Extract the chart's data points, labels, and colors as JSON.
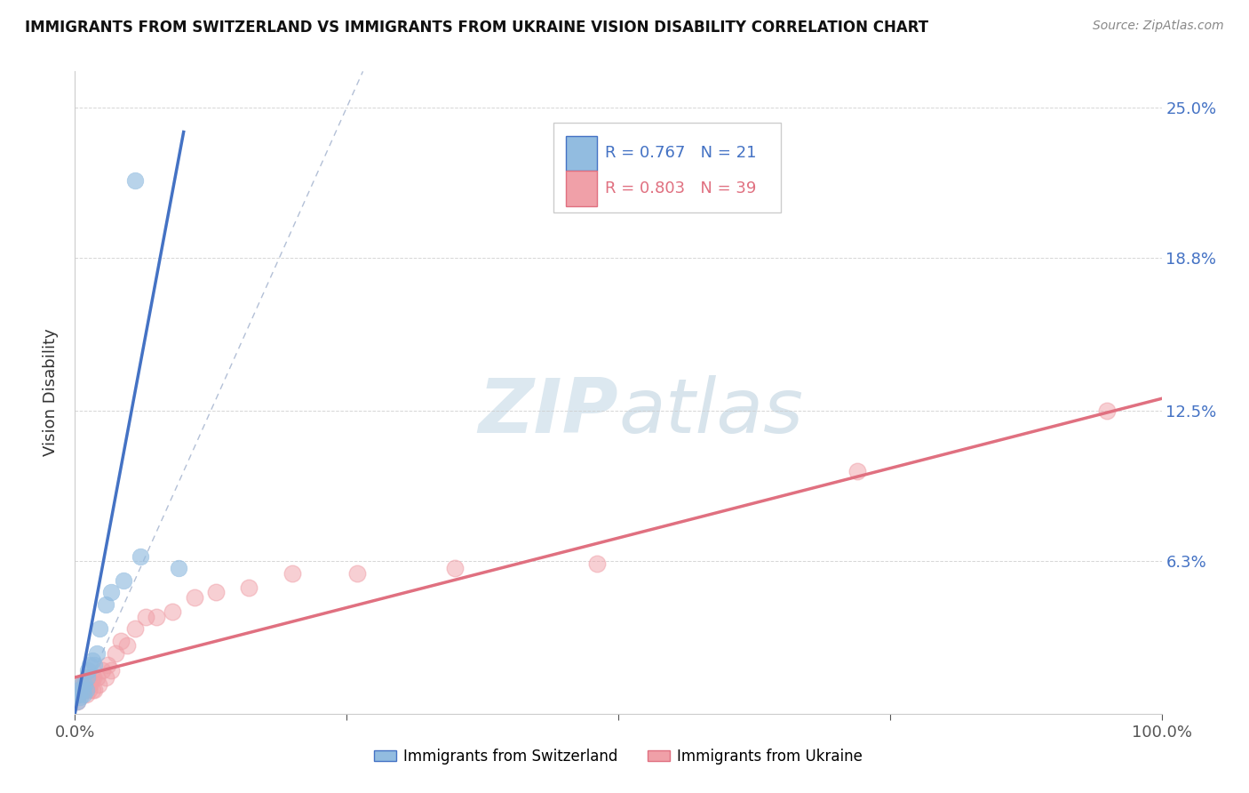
{
  "title": "IMMIGRANTS FROM SWITZERLAND VS IMMIGRANTS FROM UKRAINE VISION DISABILITY CORRELATION CHART",
  "source": "Source: ZipAtlas.com",
  "ylabel": "Vision Disability",
  "y_ticks": [
    0.0,
    0.063,
    0.125,
    0.188,
    0.25
  ],
  "y_tick_labels": [
    "",
    "6.3%",
    "12.5%",
    "18.8%",
    "25.0%"
  ],
  "x_ticks": [
    0.0,
    0.25,
    0.5,
    0.75,
    1.0
  ],
  "x_tick_labels": [
    "0.0%",
    "",
    "",
    "",
    "100.0%"
  ],
  "xlim": [
    0.0,
    1.0
  ],
  "ylim": [
    0.0,
    0.265
  ],
  "legend_r_switzerland": "R = 0.767",
  "legend_n_switzerland": "N = 21",
  "legend_r_ukraine": "R = 0.803",
  "legend_n_ukraine": "N = 39",
  "switzerland_color": "#92bce0",
  "ukraine_color": "#f0a0a8",
  "switzerland_line_color": "#4472c4",
  "ukraine_line_color": "#e07080",
  "ref_line_color": "#a0b0cc",
  "watermark_color": "#dce8f0",
  "switzerland_x": [
    0.002,
    0.003,
    0.004,
    0.005,
    0.006,
    0.007,
    0.008,
    0.009,
    0.01,
    0.011,
    0.012,
    0.014,
    0.016,
    0.018,
    0.02,
    0.023,
    0.028,
    0.033,
    0.045,
    0.06,
    0.095
  ],
  "switzerland_y": [
    0.005,
    0.008,
    0.01,
    0.007,
    0.012,
    0.01,
    0.008,
    0.012,
    0.01,
    0.015,
    0.018,
    0.02,
    0.022,
    0.02,
    0.025,
    0.035,
    0.045,
    0.05,
    0.055,
    0.065,
    0.06
  ],
  "switzerland_outlier_x": [
    0.055
  ],
  "switzerland_outlier_y": [
    0.22
  ],
  "ukraine_x": [
    0.002,
    0.003,
    0.004,
    0.005,
    0.006,
    0.007,
    0.008,
    0.009,
    0.01,
    0.011,
    0.012,
    0.013,
    0.014,
    0.015,
    0.016,
    0.017,
    0.018,
    0.02,
    0.022,
    0.025,
    0.028,
    0.03,
    0.033,
    0.037,
    0.042,
    0.048,
    0.055,
    0.065,
    0.075,
    0.09,
    0.11,
    0.13,
    0.16,
    0.2,
    0.26,
    0.35,
    0.48,
    0.72,
    0.95
  ],
  "ukraine_y": [
    0.005,
    0.008,
    0.01,
    0.012,
    0.01,
    0.012,
    0.01,
    0.012,
    0.008,
    0.012,
    0.015,
    0.01,
    0.012,
    0.015,
    0.01,
    0.015,
    0.01,
    0.015,
    0.012,
    0.018,
    0.015,
    0.02,
    0.018,
    0.025,
    0.03,
    0.028,
    0.035,
    0.04,
    0.04,
    0.042,
    0.048,
    0.05,
    0.052,
    0.058,
    0.058,
    0.06,
    0.062,
    0.1,
    0.125
  ],
  "switzerland_trend_x": [
    0.0,
    0.1
  ],
  "switzerland_trend_y": [
    0.0,
    0.24
  ],
  "ukraine_trend_x": [
    0.0,
    1.0
  ],
  "ukraine_trend_y": [
    0.015,
    0.13
  ],
  "ref_line_x": [
    0.0,
    0.265
  ],
  "ref_line_y": [
    0.0,
    0.265
  ]
}
